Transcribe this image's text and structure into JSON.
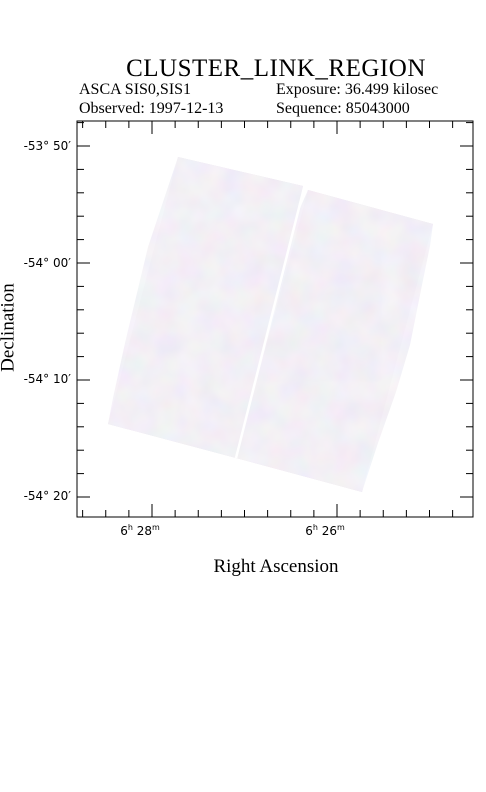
{
  "header": {
    "title": "CLUSTER_LINK_REGION",
    "mission": "ASCA SIS0,SIS1",
    "observed": "Observed: 1997-12-13",
    "exposure": "Exposure: 36.499 kilosec",
    "sequence": "Sequence: 85043000"
  },
  "axes": {
    "xlabel": "Right Ascension",
    "ylabel": "Declination",
    "dec_ticks": [
      {
        "deg": "-53°",
        "min": "50′"
      },
      {
        "deg": "-54°",
        "min": "00′"
      },
      {
        "deg": "-54°",
        "min": "10′"
      },
      {
        "deg": "-54°",
        "min": "20′"
      }
    ],
    "ra_ticks": [
      {
        "h": "6",
        "hs": "h",
        "m": "28",
        "ms": "m"
      },
      {
        "h": "6",
        "hs": "h",
        "m": "26",
        "ms": "m"
      }
    ]
  },
  "colors": {
    "frame": "#000000",
    "image_base": "#e6dde6",
    "image_tint_blue": "#d2d6f0",
    "image_tint_pink": "#f0d6dc",
    "image_tint_yellow": "#f0ecd2"
  }
}
